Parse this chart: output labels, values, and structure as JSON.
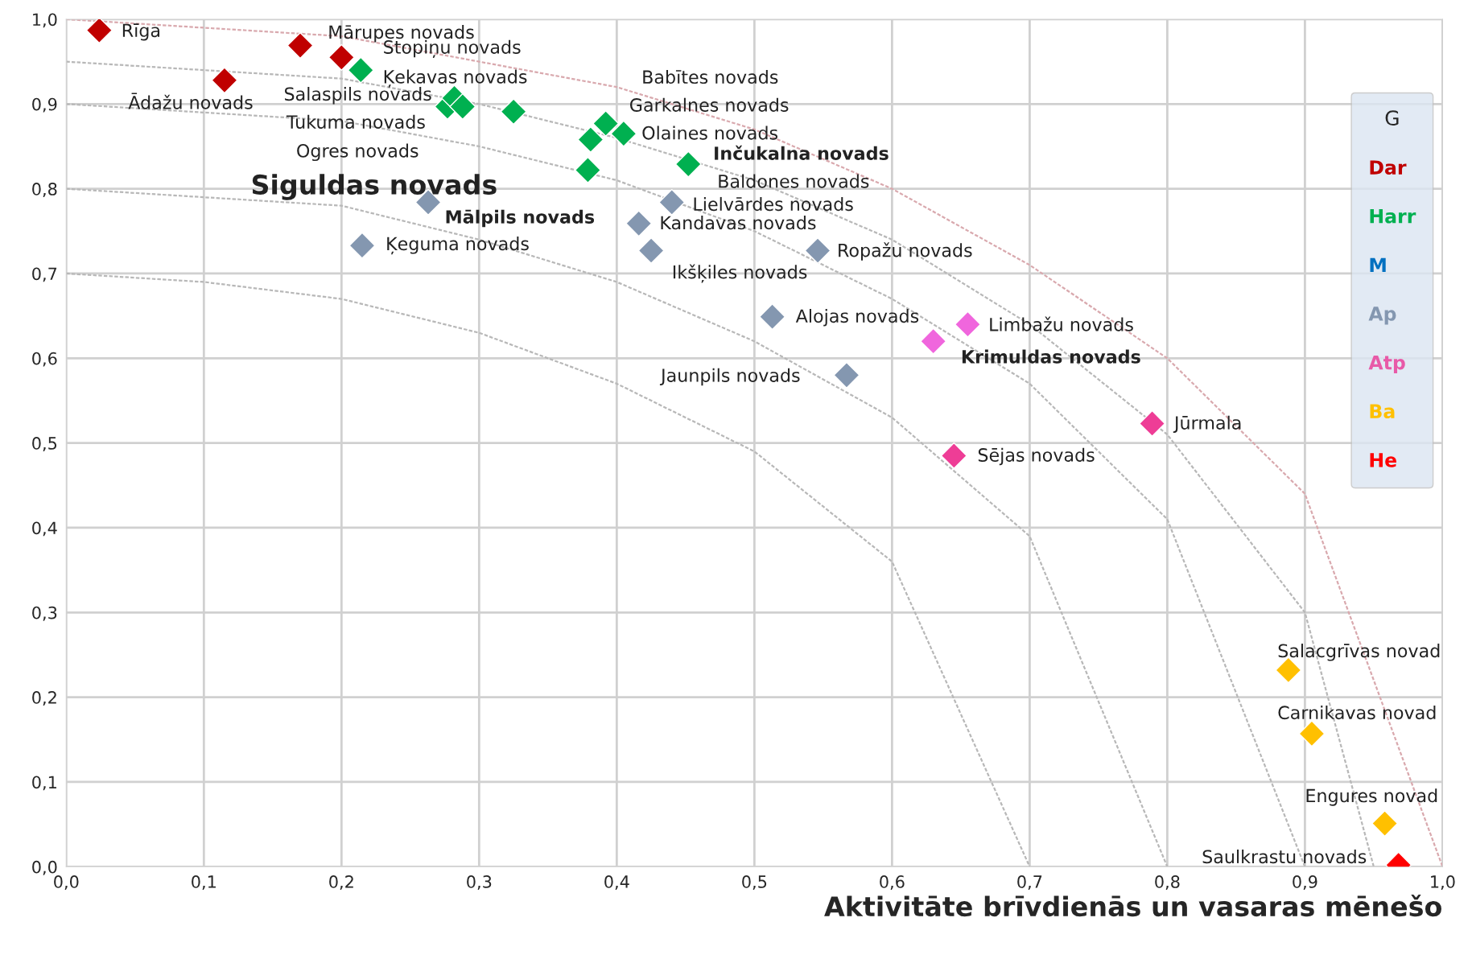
{
  "chart_data": {
    "type": "scatter",
    "xlabel": "Aktivitāte brīvdienās un vasaras mēnešo",
    "legend_title": "G",
    "xlim": [
      0,
      1
    ],
    "ylim": [
      0,
      1
    ],
    "xticks": [
      {
        "value": 0,
        "label": "0,0"
      },
      {
        "value": 0.1,
        "label": "0,1"
      },
      {
        "value": 0.2,
        "label": "0,2"
      },
      {
        "value": 0.3,
        "label": "0,3"
      },
      {
        "value": 0.4,
        "label": "0,4"
      },
      {
        "value": 0.5,
        "label": "0,5"
      },
      {
        "value": 0.6,
        "label": "0,6"
      },
      {
        "value": 0.7,
        "label": "0,7"
      },
      {
        "value": 0.8,
        "label": "0,8"
      },
      {
        "value": 0.9,
        "label": "0,9"
      },
      {
        "value": 1,
        "label": "1,0"
      }
    ],
    "yticks": [
      {
        "value": 0,
        "label": "0,0"
      },
      {
        "value": 0.1,
        "label": "0,1"
      },
      {
        "value": 0.2,
        "label": "0,2"
      },
      {
        "value": 0.3,
        "label": "0,3"
      },
      {
        "value": 0.4,
        "label": "0,4"
      },
      {
        "value": 0.5,
        "label": "0,5"
      },
      {
        "value": 0.6,
        "label": "0,6"
      },
      {
        "value": 0.7,
        "label": "0,7"
      },
      {
        "value": 0.8,
        "label": "0,8"
      },
      {
        "value": 0.9,
        "label": "0,9"
      },
      {
        "value": 1,
        "label": "1,0"
      }
    ],
    "grid": true,
    "marker": "diamond",
    "legend": "right",
    "series": [
      {
        "type": "line",
        "marker": "none",
        "line_style": "dashed",
        "color": "#d9a9ae",
        "x": [
          0,
          0.1,
          0.2,
          0.3,
          0.4,
          0.5,
          0.6,
          0.7,
          0.8,
          0.9,
          1.0
        ],
        "values": [
          1.0,
          0.99,
          0.98,
          0.95,
          0.92,
          0.87,
          0.8,
          0.71,
          0.6,
          0.44,
          0.0
        ]
      },
      {
        "type": "line",
        "marker": "none",
        "line_style": "dashed",
        "color": "#b8b8b8",
        "x": [
          0,
          0.1,
          0.2,
          0.3,
          0.4,
          0.5,
          0.6,
          0.7,
          0.8,
          0.9,
          0.95
        ],
        "values": [
          0.95,
          0.94,
          0.93,
          0.9,
          0.86,
          0.81,
          0.74,
          0.64,
          0.51,
          0.3,
          0.0
        ]
      },
      {
        "type": "line",
        "marker": "none",
        "line_style": "dashed",
        "color": "#b8b8b8",
        "x": [
          0,
          0.1,
          0.2,
          0.3,
          0.4,
          0.5,
          0.6,
          0.7,
          0.8,
          0.9
        ],
        "values": [
          0.9,
          0.89,
          0.88,
          0.85,
          0.81,
          0.75,
          0.67,
          0.57,
          0.41,
          0.0
        ]
      },
      {
        "type": "line",
        "marker": "none",
        "line_style": "dashed",
        "color": "#b8b8b8",
        "x": [
          0,
          0.1,
          0.2,
          0.3,
          0.4,
          0.5,
          0.6,
          0.7,
          0.8
        ],
        "values": [
          0.8,
          0.79,
          0.78,
          0.74,
          0.69,
          0.62,
          0.53,
          0.39,
          0.0
        ]
      },
      {
        "type": "line",
        "marker": "none",
        "line_style": "dashed",
        "color": "#b8b8b8",
        "x": [
          0,
          0.1,
          0.2,
          0.3,
          0.4,
          0.5,
          0.6,
          0.7
        ],
        "values": [
          0.7,
          0.69,
          0.67,
          0.63,
          0.57,
          0.49,
          0.36,
          0.0
        ]
      },
      {
        "name": "Dar",
        "color": "#c00000",
        "x": [
          0.024,
          0.17,
          0.2,
          0.115
        ],
        "values": [
          0.987,
          0.969,
          0.955,
          0.928
        ]
      },
      {
        "name": "Harr",
        "color": "#00b050",
        "x": [
          0.214,
          0.277,
          0.282,
          0.288,
          0.325,
          0.392,
          0.381,
          0.405,
          0.379,
          0.452
        ],
        "values": [
          0.94,
          0.897,
          0.907,
          0.897,
          0.891,
          0.877,
          0.858,
          0.865,
          0.822,
          0.829
        ]
      },
      {
        "name": "M",
        "color": "#0070c0"
      },
      {
        "name": "Ap",
        "color": "#8497b0",
        "x": [
          0.263,
          0.215,
          0.44,
          0.416,
          0.425,
          0.546,
          0.513,
          0.567
        ],
        "values": [
          0.784,
          0.733,
          0.784,
          0.759,
          0.727,
          0.727,
          0.649,
          0.58
        ]
      },
      {
        "name": "Atp",
        "color": "#e85aa8",
        "x": [
          0.655,
          0.63,
          0.789,
          0.645
        ],
        "values": [
          0.64,
          0.62,
          0.523,
          0.485
        ],
        "colors": [
          "#f066dd",
          "#f066dd",
          "#ee3d96",
          "#ee3d96"
        ]
      },
      {
        "name": "Ba",
        "color": "#ffc000",
        "x": [
          0.888,
          0.905,
          0.958
        ],
        "values": [
          0.232,
          0.157,
          0.051
        ]
      },
      {
        "name": "He",
        "color": "#ff0000",
        "x": [
          0.968
        ],
        "values": [
          0.002
        ]
      }
    ],
    "annotations": [
      "Rīga",
      "Mārupes novads",
      "Stopiņu novads",
      "Ķekavas novads",
      "Ādažu novads",
      "Salaspils novads",
      "Tukuma novads",
      "Ogres novads",
      "Siguldas novads",
      "Mālpils novads",
      "Ķeguma novads",
      "Babītes novads",
      "Garkalnes novads",
      "Olaines novads",
      "Inčukalna novads",
      "Baldones novads",
      "Lielvārdes novads",
      "Kandavas novads",
      "Ropažu novads",
      "Ikšķiles novads",
      "Alojas novads",
      "Limbažu novads",
      "Krimuldas novads",
      "Jaunpils novads",
      "Jūrmala",
      "Sējas novads",
      "Salacgrīvas novad",
      "Carnikavas novad",
      "Engures novad",
      "Saulkrastu novads"
    ]
  }
}
